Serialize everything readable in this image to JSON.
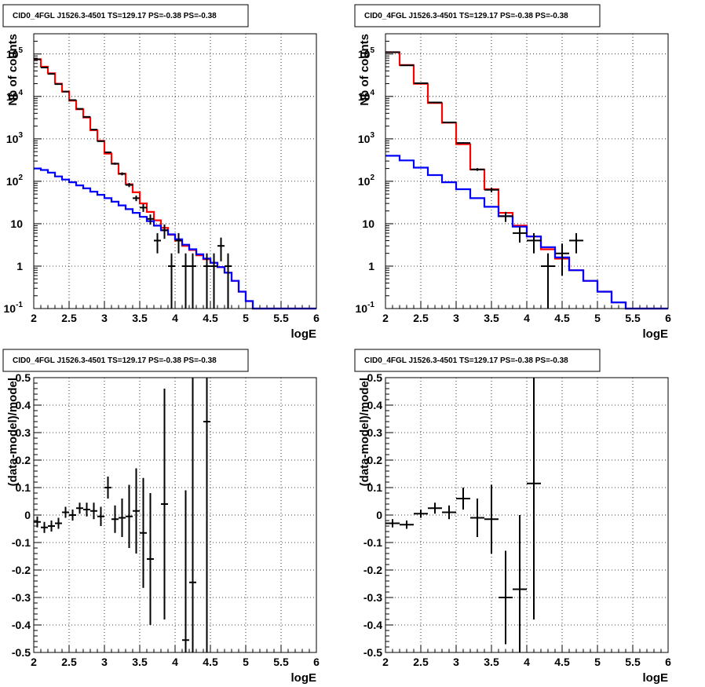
{
  "chart_data": [
    {
      "type": "line",
      "panel": "top-left",
      "title": "CID0_4FGL J1526.3-4501 TS=129.17 PS=-0.38 PS=-0.38",
      "xlabel": "logE",
      "ylabel": "Nb of counts",
      "xlim": [
        2,
        6
      ],
      "ylim": [
        0.1,
        300000
      ],
      "yscale": "log",
      "grid": true,
      "xticks": [
        "2",
        "2.5",
        "3",
        "3.5",
        "4",
        "4.5",
        "5",
        "5.5",
        "6"
      ],
      "yticks": [
        {
          "v": 0.1,
          "base": "10",
          "exp": "-1"
        },
        {
          "v": 1,
          "base": "1",
          "exp": ""
        },
        {
          "v": 10,
          "base": "10",
          "exp": ""
        },
        {
          "v": 100,
          "base": "10",
          "exp": "2"
        },
        {
          "v": 1000,
          "base": "10",
          "exp": "3"
        },
        {
          "v": 10000,
          "base": "10",
          "exp": "4"
        },
        {
          "v": 100000,
          "base": "10",
          "exp": "5"
        }
      ],
      "steps": [
        {
          "color": "#ff0000",
          "edges": [
            2.0,
            2.1,
            2.2,
            2.3,
            2.4,
            2.5,
            2.6,
            2.7,
            2.8,
            2.9,
            3.0,
            3.1,
            3.2,
            3.3,
            3.4,
            3.5,
            3.6,
            3.7,
            3.8,
            3.9,
            4.0,
            4.1,
            4.2,
            4.3,
            4.4,
            4.5,
            4.6,
            4.7,
            4.8,
            4.9,
            5.0,
            5.1,
            5.2,
            5.3,
            5.4,
            5.5,
            5.6,
            5.7,
            5.8,
            5.9,
            6.0
          ],
          "values": [
            75000,
            50000,
            35000,
            20000,
            13000,
            8000,
            5000,
            3200,
            1600,
            900,
            450,
            260,
            150,
            85,
            55,
            30,
            19,
            12,
            8,
            5.5,
            4,
            3,
            2.4,
            1.8,
            1.45,
            1.2,
            0.95,
            0.7,
            0.45,
            0.25,
            0.15,
            0.1,
            0.1,
            0.1,
            0.1,
            0.1,
            0.1,
            0.1,
            0.1,
            0.1
          ]
        },
        {
          "color": "#0000ff",
          "edges": [
            2.0,
            2.1,
            2.2,
            2.3,
            2.4,
            2.5,
            2.6,
            2.7,
            2.8,
            2.9,
            3.0,
            3.1,
            3.2,
            3.3,
            3.4,
            3.5,
            3.6,
            3.7,
            3.8,
            3.9,
            4.0,
            4.1,
            4.2,
            4.3,
            4.4,
            4.5,
            4.6,
            4.7,
            4.8,
            4.9,
            5.0,
            5.1,
            5.2,
            5.3,
            5.4,
            5.5,
            5.6,
            5.7,
            5.8,
            5.9,
            6.0
          ],
          "values": [
            200,
            185,
            160,
            130,
            110,
            95,
            80,
            68,
            57,
            48,
            40,
            33,
            27,
            22,
            18,
            14.5,
            11.5,
            9,
            7,
            5.6,
            4.3,
            3.2,
            2.5,
            1.9,
            1.5,
            1.2,
            0.95,
            0.7,
            0.45,
            0.25,
            0.15,
            0.1,
            0.1,
            0.1,
            0.1,
            0.1,
            0.1,
            0.1,
            0.1,
            0.1
          ]
        }
      ],
      "points": [
        {
          "x": 2.05,
          "y": 75000,
          "xerr": 0.05,
          "lo": 74000,
          "hi": 76000
        },
        {
          "x": 2.15,
          "y": 48000,
          "xerr": 0.05,
          "lo": 47000,
          "hi": 49000
        },
        {
          "x": 2.25,
          "y": 34000,
          "xerr": 0.05,
          "lo": 33000,
          "hi": 35000
        },
        {
          "x": 2.35,
          "y": 19500,
          "xerr": 0.05,
          "lo": 19000,
          "hi": 20000
        },
        {
          "x": 2.45,
          "y": 13000,
          "xerr": 0.05,
          "lo": 12600,
          "hi": 13400
        },
        {
          "x": 2.55,
          "y": 8200,
          "xerr": 0.05,
          "lo": 8000,
          "hi": 8400
        },
        {
          "x": 2.65,
          "y": 5100,
          "xerr": 0.05,
          "lo": 4950,
          "hi": 5250
        },
        {
          "x": 2.75,
          "y": 3300,
          "xerr": 0.05,
          "lo": 3200,
          "hi": 3400
        },
        {
          "x": 2.85,
          "y": 1650,
          "xerr": 0.05,
          "lo": 1600,
          "hi": 1700
        },
        {
          "x": 2.95,
          "y": 880,
          "xerr": 0.05,
          "lo": 850,
          "hi": 910
        },
        {
          "x": 3.05,
          "y": 480,
          "xerr": 0.05,
          "lo": 460,
          "hi": 500
        },
        {
          "x": 3.15,
          "y": 260,
          "xerr": 0.05,
          "lo": 245,
          "hi": 275
        },
        {
          "x": 3.25,
          "y": 150,
          "xerr": 0.05,
          "lo": 138,
          "hi": 162
        },
        {
          "x": 3.35,
          "y": 82,
          "xerr": 0.05,
          "lo": 73,
          "hi": 91
        },
        {
          "x": 3.45,
          "y": 40,
          "xerr": 0.05,
          "lo": 34,
          "hi": 46
        },
        {
          "x": 3.55,
          "y": 24,
          "xerr": 0.05,
          "lo": 19,
          "hi": 29
        },
        {
          "x": 3.65,
          "y": 13,
          "xerr": 0.05,
          "lo": 9.5,
          "hi": 16.5
        },
        {
          "x": 3.75,
          "y": 4,
          "xerr": 0.05,
          "lo": 2,
          "hi": 6
        },
        {
          "x": 3.85,
          "y": 7,
          "xerr": 0.05,
          "lo": 4.4,
          "hi": 9.6
        },
        {
          "x": 3.95,
          "y": 1,
          "xerr": 0.05,
          "lo": 0.1,
          "hi": 2
        },
        {
          "x": 4.05,
          "y": 4,
          "xerr": 0.05,
          "lo": 2,
          "hi": 6
        },
        {
          "x": 4.15,
          "y": 1,
          "xerr": 0.05,
          "lo": 0.1,
          "hi": 2
        },
        {
          "x": 4.25,
          "y": 1,
          "xerr": 0.05,
          "lo": 0.1,
          "hi": 2
        },
        {
          "x": 4.45,
          "y": 1,
          "xerr": 0.05,
          "lo": 0.1,
          "hi": 2
        },
        {
          "x": 4.55,
          "y": 1,
          "xerr": 0.05,
          "lo": 0.1,
          "hi": 2
        },
        {
          "x": 4.65,
          "y": 3,
          "xerr": 0.05,
          "lo": 1.3,
          "hi": 4.7
        },
        {
          "x": 4.75,
          "y": 1,
          "xerr": 0.05,
          "lo": 0.1,
          "hi": 2
        }
      ]
    },
    {
      "type": "line",
      "panel": "top-right",
      "title": "CID0_4FGL J1526.3-4501 TS=129.17 PS=-0.38 PS=-0.38",
      "xlabel": "logE",
      "ylabel": "Nb of counts",
      "xlim": [
        2,
        6
      ],
      "ylim": [
        0.1,
        300000
      ],
      "yscale": "log",
      "grid": true,
      "xticks": [
        "2",
        "2.5",
        "3",
        "3.5",
        "4",
        "4.5",
        "5",
        "5.5",
        "6"
      ],
      "yticks": [
        {
          "v": 0.1,
          "base": "10",
          "exp": "-1"
        },
        {
          "v": 1,
          "base": "1",
          "exp": ""
        },
        {
          "v": 10,
          "base": "10",
          "exp": ""
        },
        {
          "v": 100,
          "base": "10",
          "exp": "2"
        },
        {
          "v": 1000,
          "base": "10",
          "exp": "3"
        },
        {
          "v": 10000,
          "base": "10",
          "exp": "4"
        },
        {
          "v": 100000,
          "base": "10",
          "exp": "5"
        }
      ],
      "steps": [
        {
          "color": "#ff0000",
          "edges": [
            2.0,
            2.2,
            2.4,
            2.6,
            2.8,
            3.0,
            3.2,
            3.4,
            3.6,
            3.8,
            4.0,
            4.2,
            4.4,
            4.6,
            4.8,
            5.0,
            5.2,
            5.4,
            5.6,
            5.8,
            6.0
          ],
          "values": [
            110000,
            55000,
            20000,
            7000,
            2400,
            750,
            190,
            65,
            18,
            9,
            5,
            2.5,
            1.5,
            0.8,
            0.45,
            0.25,
            0.14,
            0.1,
            0.1,
            0.1
          ]
        },
        {
          "color": "#0000ff",
          "edges": [
            2.0,
            2.2,
            2.4,
            2.6,
            2.8,
            3.0,
            3.2,
            3.4,
            3.6,
            3.8,
            4.0,
            4.2,
            4.4,
            4.6,
            4.8,
            5.0,
            5.2,
            5.4,
            5.6,
            5.8,
            6.0
          ],
          "values": [
            400,
            310,
            210,
            140,
            95,
            65,
            40,
            25,
            15,
            8.5,
            5,
            2.8,
            1.6,
            0.8,
            0.45,
            0.25,
            0.14,
            0.1,
            0.1,
            0.1
          ]
        }
      ],
      "points": [
        {
          "x": 2.1,
          "y": 110000,
          "xerr": 0.1,
          "lo": 109000,
          "hi": 111000
        },
        {
          "x": 2.3,
          "y": 54000,
          "xerr": 0.1,
          "lo": 53500,
          "hi": 54500
        },
        {
          "x": 2.5,
          "y": 20500,
          "xerr": 0.1,
          "lo": 20200,
          "hi": 20800
        },
        {
          "x": 2.7,
          "y": 7200,
          "xerr": 0.1,
          "lo": 7050,
          "hi": 7350
        },
        {
          "x": 2.9,
          "y": 2450,
          "xerr": 0.1,
          "lo": 2400,
          "hi": 2500
        },
        {
          "x": 3.1,
          "y": 800,
          "xerr": 0.1,
          "lo": 770,
          "hi": 830
        },
        {
          "x": 3.3,
          "y": 190,
          "xerr": 0.1,
          "lo": 176,
          "hi": 204
        },
        {
          "x": 3.5,
          "y": 63,
          "xerr": 0.1,
          "lo": 55,
          "hi": 71
        },
        {
          "x": 3.7,
          "y": 15,
          "xerr": 0.1,
          "lo": 11,
          "hi": 19
        },
        {
          "x": 3.9,
          "y": 6,
          "xerr": 0.1,
          "lo": 3.6,
          "hi": 8.4
        },
        {
          "x": 4.1,
          "y": 4,
          "xerr": 0.1,
          "lo": 2,
          "hi": 6
        },
        {
          "x": 4.3,
          "y": 1,
          "xerr": 0.1,
          "lo": 0.1,
          "hi": 2
        },
        {
          "x": 4.5,
          "y": 2,
          "xerr": 0.1,
          "lo": 0.6,
          "hi": 3.4
        },
        {
          "x": 4.7,
          "y": 4,
          "xerr": 0.1,
          "lo": 2,
          "hi": 6
        }
      ]
    },
    {
      "type": "scatter",
      "panel": "bottom-left",
      "title": "CID0_4FGL J1526.3-4501 TS=129.17 PS=-0.38 PS=-0.38",
      "xlabel": "logE",
      "ylabel": "(data-model)/model",
      "xlim": [
        2,
        6
      ],
      "ylim": [
        -0.5,
        0.5
      ],
      "yscale": "linear",
      "grid": true,
      "xticks": [
        "2",
        "2.5",
        "3",
        "3.5",
        "4",
        "4.5",
        "5",
        "5.5",
        "6"
      ],
      "ytick_labels": [
        "-0.5",
        "-0.4",
        "-0.3",
        "-0.2",
        "-0.1",
        "0",
        "0.1",
        "0.2",
        "0.3",
        "0.4",
        "0.5"
      ],
      "points": [
        {
          "x": 2.05,
          "y": -0.025,
          "xerr": 0.05,
          "lo": -0.045,
          "hi": -0.005
        },
        {
          "x": 2.15,
          "y": -0.045,
          "xerr": 0.05,
          "lo": -0.065,
          "hi": -0.025
        },
        {
          "x": 2.25,
          "y": -0.04,
          "xerr": 0.05,
          "lo": -0.06,
          "hi": -0.02
        },
        {
          "x": 2.35,
          "y": -0.03,
          "xerr": 0.05,
          "lo": -0.05,
          "hi": -0.01
        },
        {
          "x": 2.45,
          "y": 0.01,
          "xerr": 0.05,
          "lo": -0.01,
          "hi": 0.03
        },
        {
          "x": 2.55,
          "y": 0.0,
          "xerr": 0.05,
          "lo": -0.02,
          "hi": 0.02
        },
        {
          "x": 2.65,
          "y": 0.025,
          "xerr": 0.05,
          "lo": 0.005,
          "hi": 0.045
        },
        {
          "x": 2.75,
          "y": 0.02,
          "xerr": 0.05,
          "lo": -0.005,
          "hi": 0.045
        },
        {
          "x": 2.85,
          "y": 0.015,
          "xerr": 0.05,
          "lo": -0.015,
          "hi": 0.045
        },
        {
          "x": 2.95,
          "y": -0.005,
          "xerr": 0.05,
          "lo": -0.04,
          "hi": 0.03
        },
        {
          "x": 3.05,
          "y": 0.1,
          "xerr": 0.05,
          "lo": 0.06,
          "hi": 0.14
        },
        {
          "x": 3.15,
          "y": -0.015,
          "xerr": 0.05,
          "lo": -0.065,
          "hi": 0.035
        },
        {
          "x": 3.25,
          "y": -0.01,
          "xerr": 0.05,
          "lo": -0.08,
          "hi": 0.06
        },
        {
          "x": 3.35,
          "y": -0.005,
          "xerr": 0.05,
          "lo": -0.12,
          "hi": 0.11
        },
        {
          "x": 3.45,
          "y": 0.015,
          "xerr": 0.05,
          "lo": -0.14,
          "hi": 0.17
        },
        {
          "x": 3.55,
          "y": -0.065,
          "xerr": 0.05,
          "lo": -0.265,
          "hi": 0.135
        },
        {
          "x": 3.65,
          "y": -0.16,
          "xerr": 0.05,
          "lo": -0.4,
          "hi": 0.08
        },
        {
          "x": 3.85,
          "y": 0.04,
          "xerr": 0.05,
          "lo": -0.38,
          "hi": 0.46
        },
        {
          "x": 4.15,
          "y": -0.455,
          "xerr": 0.05,
          "lo": -0.5,
          "hi": 0.09
        },
        {
          "x": 4.25,
          "y": -0.245,
          "xerr": 0.05,
          "lo": -0.5,
          "hi": 0.5
        },
        {
          "x": 4.45,
          "y": 0.34,
          "xerr": 0.05,
          "lo": -0.5,
          "hi": 0.5
        }
      ]
    },
    {
      "type": "scatter",
      "panel": "bottom-right",
      "title": "CID0_4FGL J1526.3-4501 TS=129.17 PS=-0.38 PS=-0.38",
      "xlabel": "logE",
      "ylabel": "(data-model)/model",
      "xlim": [
        2,
        6
      ],
      "ylim": [
        -0.5,
        0.5
      ],
      "yscale": "linear",
      "grid": true,
      "xticks": [
        "2",
        "2.5",
        "3",
        "3.5",
        "4",
        "4.5",
        "5",
        "5.5",
        "6"
      ],
      "ytick_labels": [
        "-0.5",
        "-0.4",
        "-0.3",
        "-0.2",
        "-0.1",
        "0",
        "0.1",
        "0.2",
        "0.3",
        "0.4",
        "0.5"
      ],
      "points": [
        {
          "x": 2.1,
          "y": -0.03,
          "xerr": 0.1,
          "lo": -0.045,
          "hi": -0.015
        },
        {
          "x": 2.3,
          "y": -0.035,
          "xerr": 0.1,
          "lo": -0.05,
          "hi": -0.02
        },
        {
          "x": 2.5,
          "y": 0.005,
          "xerr": 0.1,
          "lo": -0.01,
          "hi": 0.02
        },
        {
          "x": 2.7,
          "y": 0.025,
          "xerr": 0.1,
          "lo": 0.005,
          "hi": 0.045
        },
        {
          "x": 2.9,
          "y": 0.01,
          "xerr": 0.1,
          "lo": -0.015,
          "hi": 0.035
        },
        {
          "x": 3.1,
          "y": 0.06,
          "xerr": 0.1,
          "lo": 0.02,
          "hi": 0.1
        },
        {
          "x": 3.3,
          "y": -0.01,
          "xerr": 0.1,
          "lo": -0.08,
          "hi": 0.06
        },
        {
          "x": 3.5,
          "y": -0.015,
          "xerr": 0.1,
          "lo": -0.14,
          "hi": 0.11
        },
        {
          "x": 3.7,
          "y": -0.3,
          "xerr": 0.1,
          "lo": -0.47,
          "hi": -0.13
        },
        {
          "x": 3.9,
          "y": -0.27,
          "xerr": 0.1,
          "lo": -0.5,
          "hi": -0.0
        },
        {
          "x": 4.1,
          "y": 0.115,
          "xerr": 0.1,
          "lo": -0.38,
          "hi": 0.5
        }
      ]
    }
  ]
}
